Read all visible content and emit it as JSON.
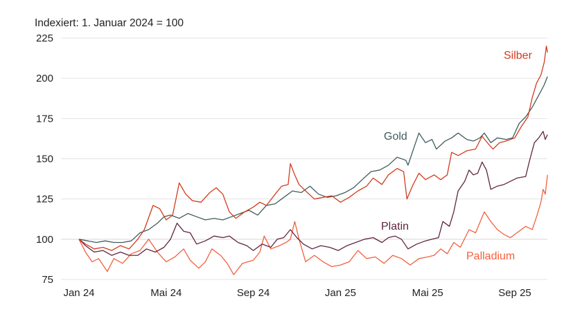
{
  "chart_data": {
    "type": "line",
    "title": "Indexiert: 1. Januar 2024 = 100",
    "xlabel": "",
    "ylabel": "",
    "x_unit": "months since 1 Jan 2024",
    "xlim": [
      0,
      21.5
    ],
    "ylim": [
      75,
      225
    ],
    "grid": true,
    "legend": "inline labels",
    "yticks": [
      75,
      100,
      125,
      150,
      175,
      200,
      225
    ],
    "xticks": [
      {
        "x": 0,
        "label": "Jan 24"
      },
      {
        "x": 4,
        "label": "Mai 24"
      },
      {
        "x": 8,
        "label": "Sep 24"
      },
      {
        "x": 12,
        "label": "Jan 25"
      },
      {
        "x": 16,
        "label": "Mai 25"
      },
      {
        "x": 20,
        "label": "Sep 25"
      }
    ],
    "series": [
      {
        "name": "Palladium",
        "color": "#f2603f",
        "points": [
          [
            0,
            100
          ],
          [
            0.3,
            92
          ],
          [
            0.6,
            86
          ],
          [
            0.9,
            88
          ],
          [
            1.3,
            80
          ],
          [
            1.6,
            88
          ],
          [
            2,
            85
          ],
          [
            2.4,
            91
          ],
          [
            2.8,
            93
          ],
          [
            3.2,
            100
          ],
          [
            3.6,
            92
          ],
          [
            4,
            86
          ],
          [
            4.4,
            89
          ],
          [
            4.8,
            94
          ],
          [
            5.1,
            87
          ],
          [
            5.5,
            82
          ],
          [
            5.8,
            86
          ],
          [
            6.1,
            94
          ],
          [
            6.5,
            90
          ],
          [
            6.8,
            85
          ],
          [
            7.1,
            78
          ],
          [
            7.5,
            85
          ],
          [
            8,
            87
          ],
          [
            8.3,
            92
          ],
          [
            8.5,
            102
          ],
          [
            8.8,
            94
          ],
          [
            9.2,
            96
          ],
          [
            9.5,
            98
          ],
          [
            9.7,
            100
          ],
          [
            9.9,
            111
          ],
          [
            10.1,
            100
          ],
          [
            10.4,
            86
          ],
          [
            10.8,
            90
          ],
          [
            11.2,
            86
          ],
          [
            11.6,
            83
          ],
          [
            12,
            84
          ],
          [
            12.4,
            86
          ],
          [
            12.8,
            93
          ],
          [
            13.2,
            88
          ],
          [
            13.6,
            89
          ],
          [
            14,
            85
          ],
          [
            14.4,
            90
          ],
          [
            14.8,
            88
          ],
          [
            15.2,
            84
          ],
          [
            15.6,
            88
          ],
          [
            16,
            89
          ],
          [
            16.3,
            90
          ],
          [
            16.6,
            94
          ],
          [
            16.9,
            91
          ],
          [
            17.2,
            98
          ],
          [
            17.5,
            95
          ],
          [
            17.9,
            106
          ],
          [
            18.2,
            104
          ],
          [
            18.6,
            117
          ],
          [
            18.9,
            111
          ],
          [
            19.2,
            106
          ],
          [
            19.5,
            103
          ],
          [
            19.8,
            101
          ],
          [
            20.1,
            104
          ],
          [
            20.5,
            108
          ],
          [
            20.8,
            106
          ],
          [
            21,
            114
          ],
          [
            21.2,
            123
          ],
          [
            21.3,
            131
          ],
          [
            21.4,
            128
          ],
          [
            21.5,
            140
          ]
        ]
      },
      {
        "name": "Platin",
        "color": "#5e2440",
        "points": [
          [
            0,
            100
          ],
          [
            0.3,
            96
          ],
          [
            0.7,
            92
          ],
          [
            1.1,
            93
          ],
          [
            1.5,
            90
          ],
          [
            1.9,
            92
          ],
          [
            2.3,
            90
          ],
          [
            2.7,
            90
          ],
          [
            3.1,
            94
          ],
          [
            3.5,
            92
          ],
          [
            3.9,
            95
          ],
          [
            4.2,
            100
          ],
          [
            4.5,
            110
          ],
          [
            4.8,
            105
          ],
          [
            5.1,
            104
          ],
          [
            5.4,
            97
          ],
          [
            5.8,
            99
          ],
          [
            6.2,
            102
          ],
          [
            6.6,
            101
          ],
          [
            6.9,
            102
          ],
          [
            7.3,
            98
          ],
          [
            7.7,
            96
          ],
          [
            8,
            93
          ],
          [
            8.4,
            97
          ],
          [
            8.8,
            95
          ],
          [
            9.1,
            100
          ],
          [
            9.4,
            101
          ],
          [
            9.7,
            106
          ],
          [
            10,
            101
          ],
          [
            10.3,
            97
          ],
          [
            10.7,
            94
          ],
          [
            11.1,
            96
          ],
          [
            11.5,
            95
          ],
          [
            11.9,
            93
          ],
          [
            12.3,
            96
          ],
          [
            12.7,
            98
          ],
          [
            13.1,
            100
          ],
          [
            13.5,
            101
          ],
          [
            13.9,
            98
          ],
          [
            14.2,
            101
          ],
          [
            14.5,
            102
          ],
          [
            14.8,
            100
          ],
          [
            15.1,
            94
          ],
          [
            15.5,
            97
          ],
          [
            15.9,
            99
          ],
          [
            16.2,
            100
          ],
          [
            16.5,
            101
          ],
          [
            16.7,
            111
          ],
          [
            17,
            108
          ],
          [
            17.2,
            117
          ],
          [
            17.4,
            130
          ],
          [
            17.7,
            136
          ],
          [
            17.9,
            143
          ],
          [
            18.1,
            140
          ],
          [
            18.3,
            141
          ],
          [
            18.5,
            148
          ],
          [
            18.7,
            143
          ],
          [
            18.9,
            131
          ],
          [
            19.2,
            133
          ],
          [
            19.5,
            134
          ],
          [
            19.8,
            136
          ],
          [
            20.1,
            138
          ],
          [
            20.5,
            139
          ],
          [
            20.7,
            150
          ],
          [
            20.9,
            160
          ],
          [
            21.1,
            163
          ],
          [
            21.3,
            167
          ],
          [
            21.4,
            162
          ],
          [
            21.5,
            165
          ]
        ]
      },
      {
        "name": "Gold",
        "color": "#3f5c5c",
        "points": [
          [
            0,
            100
          ],
          [
            0.4,
            99
          ],
          [
            0.8,
            98
          ],
          [
            1.2,
            99
          ],
          [
            1.6,
            98
          ],
          [
            2,
            98
          ],
          [
            2.4,
            99
          ],
          [
            2.8,
            104
          ],
          [
            3.2,
            106
          ],
          [
            3.6,
            110
          ],
          [
            3.9,
            114
          ],
          [
            4.2,
            115
          ],
          [
            4.6,
            113
          ],
          [
            5,
            116
          ],
          [
            5.4,
            114
          ],
          [
            5.8,
            112
          ],
          [
            6.2,
            113
          ],
          [
            6.6,
            112
          ],
          [
            7,
            114
          ],
          [
            7.4,
            116
          ],
          [
            7.8,
            118
          ],
          [
            8.2,
            115
          ],
          [
            8.6,
            121
          ],
          [
            9,
            122
          ],
          [
            9.4,
            126
          ],
          [
            9.8,
            130
          ],
          [
            10.2,
            129
          ],
          [
            10.6,
            133
          ],
          [
            11,
            128
          ],
          [
            11.4,
            126
          ],
          [
            11.8,
            127
          ],
          [
            12.2,
            129
          ],
          [
            12.6,
            132
          ],
          [
            13,
            137
          ],
          [
            13.4,
            142
          ],
          [
            13.8,
            143
          ],
          [
            14.2,
            146
          ],
          [
            14.6,
            151
          ],
          [
            15,
            149
          ],
          [
            15.1,
            146
          ],
          [
            15.4,
            158
          ],
          [
            15.6,
            166
          ],
          [
            15.9,
            160
          ],
          [
            16.2,
            162
          ],
          [
            16.4,
            156
          ],
          [
            16.8,
            161
          ],
          [
            17.1,
            163
          ],
          [
            17.4,
            166
          ],
          [
            17.8,
            162
          ],
          [
            18.1,
            161
          ],
          [
            18.4,
            163
          ],
          [
            18.6,
            166
          ],
          [
            18.9,
            160
          ],
          [
            19.2,
            163
          ],
          [
            19.6,
            162
          ],
          [
            19.9,
            163
          ],
          [
            20.2,
            172
          ],
          [
            20.5,
            176
          ],
          [
            20.8,
            182
          ],
          [
            21,
            187
          ],
          [
            21.2,
            192
          ],
          [
            21.35,
            196
          ],
          [
            21.5,
            201
          ]
        ]
      },
      {
        "name": "Silber",
        "color": "#d13a1c",
        "points": [
          [
            0,
            100
          ],
          [
            0.3,
            97
          ],
          [
            0.7,
            94
          ],
          [
            1.1,
            95
          ],
          [
            1.5,
            93
          ],
          [
            1.9,
            96
          ],
          [
            2.3,
            94
          ],
          [
            2.7,
            100
          ],
          [
            3,
            106
          ],
          [
            3.4,
            121
          ],
          [
            3.7,
            119
          ],
          [
            4,
            112
          ],
          [
            4.3,
            115
          ],
          [
            4.6,
            135
          ],
          [
            4.9,
            128
          ],
          [
            5.2,
            124
          ],
          [
            5.6,
            123
          ],
          [
            6,
            129
          ],
          [
            6.3,
            132
          ],
          [
            6.6,
            128
          ],
          [
            6.9,
            117
          ],
          [
            7.2,
            113
          ],
          [
            7.6,
            117
          ],
          [
            8,
            120
          ],
          [
            8.3,
            123
          ],
          [
            8.6,
            121
          ],
          [
            9,
            128
          ],
          [
            9.3,
            133
          ],
          [
            9.6,
            134
          ],
          [
            9.7,
            147
          ],
          [
            9.9,
            140
          ],
          [
            10.1,
            134
          ],
          [
            10.4,
            130
          ],
          [
            10.8,
            125
          ],
          [
            11.2,
            126
          ],
          [
            11.6,
            127
          ],
          [
            12,
            123
          ],
          [
            12.4,
            126
          ],
          [
            12.8,
            130
          ],
          [
            13.2,
            133
          ],
          [
            13.5,
            138
          ],
          [
            13.9,
            134
          ],
          [
            14.2,
            140
          ],
          [
            14.6,
            144
          ],
          [
            14.9,
            142
          ],
          [
            15.05,
            125
          ],
          [
            15.3,
            133
          ],
          [
            15.6,
            141
          ],
          [
            15.9,
            137
          ],
          [
            16.3,
            140
          ],
          [
            16.6,
            137
          ],
          [
            16.9,
            140
          ],
          [
            17.1,
            154
          ],
          [
            17.4,
            152
          ],
          [
            17.8,
            155
          ],
          [
            18.2,
            156
          ],
          [
            18.5,
            164
          ],
          [
            18.8,
            159
          ],
          [
            19,
            156
          ],
          [
            19.3,
            160
          ],
          [
            19.6,
            161
          ],
          [
            20,
            163
          ],
          [
            20.3,
            170
          ],
          [
            20.6,
            176
          ],
          [
            20.8,
            188
          ],
          [
            21,
            197
          ],
          [
            21.2,
            202
          ],
          [
            21.35,
            210
          ],
          [
            21.45,
            220
          ],
          [
            21.5,
            216
          ]
        ]
      }
    ],
    "labels": {
      "silber": "Silber",
      "gold": "Gold",
      "platin": "Platin",
      "palladium": "Palladium"
    }
  }
}
